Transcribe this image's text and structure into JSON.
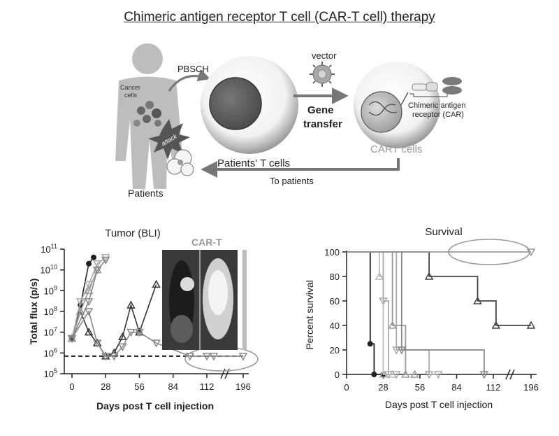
{
  "title": "Chimeric antigen receptor T cell (CAR-T cell) therapy",
  "diagram": {
    "cancer_cells_line1": "Cancer",
    "cancer_cells_line2": "cells",
    "attack": "attack",
    "pbsch": "PBSCH",
    "vector": "vector",
    "gene_transfer_line1": "Gene",
    "gene_transfer_line2": "transfer",
    "patients_t_cells": "Patients' T cells",
    "cart_cells": "CART cells",
    "car_label_line1": "Chimeric antigen",
    "car_label_line2": "receptor (CAR)",
    "to_patients": "To patients",
    "patients": "Patients"
  },
  "chart_data": [
    {
      "type": "line",
      "title": "Tumor (BLI)",
      "xlabel": "Days post T cell injection",
      "ylabel": "Total flux (p/s)",
      "x_ticks": [
        "0",
        "28",
        "56",
        "84",
        "112",
        "196"
      ],
      "y_ticks": [
        "5",
        "6",
        "7",
        "8",
        "9",
        "10",
        "11"
      ],
      "y_scale": "log",
      "ylim": [
        100000,
        100000000000
      ],
      "baseline": 700000,
      "inset_label": "CAR-T",
      "series": [
        {
          "color": "#222222",
          "marker": "circle",
          "points": [
            [
              0,
              5000000
            ],
            [
              7,
              200000000
            ],
            [
              14,
              20000000000
            ],
            [
              18,
              40000000000
            ]
          ]
        },
        {
          "color": "#333333",
          "marker": "triangle-up",
          "points": [
            [
              0,
              5000000
            ],
            [
              7,
              100000000
            ],
            [
              14,
              10000000
            ],
            [
              21,
              3000000
            ],
            [
              28,
              700000
            ],
            [
              35,
              1000000
            ],
            [
              42,
              6000000
            ],
            [
              49,
              200000000
            ],
            [
              56,
              10000000
            ],
            [
              70,
              2000000000
            ]
          ]
        },
        {
          "color": "#aaaaaa",
          "marker": "triangle-down",
          "points": [
            [
              0,
              5000000
            ],
            [
              7,
              300000000
            ],
            [
              14,
              2000000000
            ],
            [
              21,
              20000000000
            ],
            [
              28,
              40000000000
            ]
          ]
        },
        {
          "color": "#999999",
          "marker": "triangle-up",
          "points": [
            [
              0,
              5000000
            ],
            [
              7,
              100000000
            ],
            [
              14,
              1000000000
            ],
            [
              21,
              10000000000
            ]
          ]
        },
        {
          "color": "#888888",
          "marker": "triangle-down",
          "points": [
            [
              0,
              5000000
            ],
            [
              14,
              300000000
            ],
            [
              21,
              10000000000
            ],
            [
              28,
              30000000000
            ]
          ]
        },
        {
          "color": "#888888",
          "marker": "triangle-down",
          "points": [
            [
              0,
              5000000
            ],
            [
              14,
              100000000
            ],
            [
              21,
              3000000
            ],
            [
              28,
              700000
            ],
            [
              35,
              700000
            ],
            [
              42,
              2000000
            ],
            [
              49,
              10000000
            ],
            [
              56,
              10000000
            ],
            [
              70,
              3000000
            ],
            [
              98,
              700000
            ],
            [
              112,
              700000
            ],
            [
              128,
              700000
            ],
            [
              196,
              700000
            ]
          ]
        }
      ]
    },
    {
      "type": "line",
      "title": "Survival",
      "xlabel": "Days post T cell injection",
      "ylabel": "Percent survival",
      "x_ticks": [
        "0",
        "28",
        "56",
        "84",
        "112",
        "196"
      ],
      "y_ticks": [
        "0",
        "20",
        "40",
        "60",
        "80",
        "100"
      ],
      "ylim": [
        0,
        100
      ],
      "step": true,
      "series": [
        {
          "color": "#222222",
          "marker": "circle",
          "points": [
            [
              0,
              100
            ],
            [
              18,
              100
            ],
            [
              18,
              25
            ],
            [
              21,
              25
            ],
            [
              21,
              0
            ],
            [
              28,
              0
            ]
          ]
        },
        {
          "color": "#bbbbbb",
          "marker": "triangle-up",
          "points": [
            [
              0,
              100
            ],
            [
              25,
              100
            ],
            [
              25,
              80
            ],
            [
              28,
              80
            ],
            [
              28,
              0
            ],
            [
              35,
              0
            ]
          ]
        },
        {
          "color": "#aaaaaa",
          "marker": "triangle-down",
          "points": [
            [
              0,
              100
            ],
            [
              28,
              100
            ],
            [
              28,
              60
            ],
            [
              32,
              60
            ],
            [
              32,
              0
            ],
            [
              38,
              0
            ]
          ]
        },
        {
          "color": "#999999",
          "marker": "triangle-up",
          "points": [
            [
              0,
              100
            ],
            [
              35,
              100
            ],
            [
              35,
              40
            ],
            [
              45,
              40
            ],
            [
              45,
              0
            ],
            [
              52,
              0
            ]
          ]
        },
        {
          "color": "#aaaaaa",
          "marker": "triangle-down",
          "points": [
            [
              0,
              100
            ],
            [
              38,
              100
            ],
            [
              38,
              20
            ],
            [
              63,
              20
            ],
            [
              63,
              0
            ],
            [
              70,
              0
            ]
          ]
        },
        {
          "color": "#888888",
          "marker": "triangle-down",
          "points": [
            [
              0,
              100
            ],
            [
              42,
              100
            ],
            [
              42,
              20
            ],
            [
              105,
              20
            ],
            [
              105,
              0
            ]
          ]
        },
        {
          "color": "#444444",
          "marker": "triangle-up",
          "points": [
            [
              0,
              100
            ],
            [
              63,
              100
            ],
            [
              63,
              80
            ],
            [
              100,
              80
            ],
            [
              100,
              60
            ],
            [
              118,
              60
            ],
            [
              118,
              40
            ],
            [
              196,
              40
            ]
          ]
        },
        {
          "color": "#999999",
          "marker": "triangle-down",
          "points": [
            [
              0,
              100
            ],
            [
              196,
              100
            ]
          ]
        }
      ]
    }
  ]
}
